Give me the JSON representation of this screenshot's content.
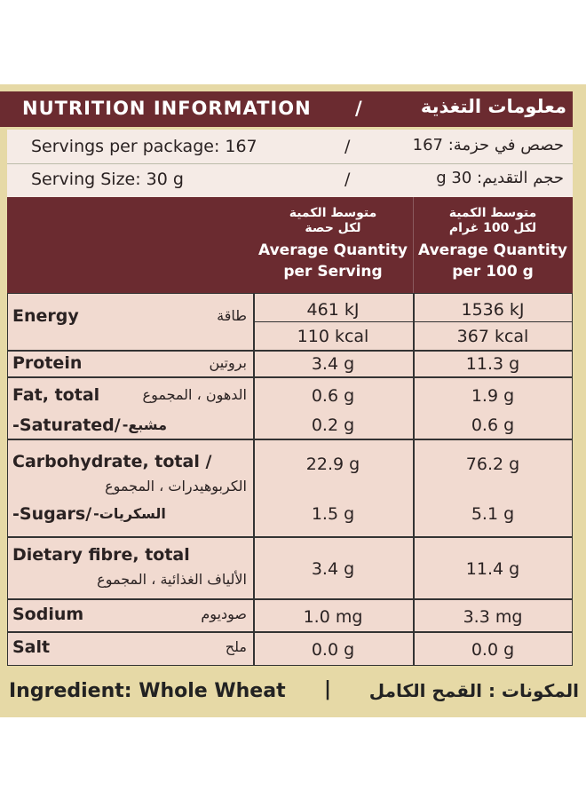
{
  "header": {
    "title_en": "NUTRITION INFORMATION",
    "separator": "/",
    "title_ar": "معلومات التغذية"
  },
  "servings": [
    {
      "label_en": "Servings per package: 167",
      "separator": "/",
      "label_ar": "حصص في حزمة: 167"
    },
    {
      "label_en": "Serving Size: 30 g",
      "separator": "/",
      "label_ar": "حجم التقديم: 30 g"
    }
  ],
  "columns": [
    {
      "ar": [
        "متوسط الكمية",
        "لكل حصة"
      ],
      "en": [
        "Average Quantity",
        "per Serving"
      ]
    },
    {
      "ar": [
        "متوسط الكمية",
        "لكل 100 غرام"
      ],
      "en": [
        "Average Quantity",
        "per 100 g"
      ]
    }
  ],
  "rows": [
    {
      "label_en": "Energy",
      "label_ar": "طاقة",
      "serving": [
        "461 kJ",
        "110 kcal"
      ],
      "per100g": [
        "1536 kJ",
        "367 kcal"
      ]
    },
    {
      "label_en": "Protein",
      "label_ar": "بروتين",
      "serving": [
        "3.4 g"
      ],
      "per100g": [
        "11.3 g"
      ]
    },
    {
      "label_en": "Fat, total",
      "label_ar": "الدهون ، المجموع",
      "serving": [
        "0.6 g"
      ],
      "per100g": [
        "1.9 g"
      ]
    },
    {
      "label_en": "-Saturated/",
      "label_ar": "مشبع-",
      "serving": [
        "0.2 g"
      ],
      "per100g": [
        "0.6 g"
      ]
    },
    {
      "label_en": "Carbohydrate, total /",
      "label_ar": "الكربوهيدرات ، المجموع",
      "serving": [
        "22.9 g"
      ],
      "per100g": [
        "76.2 g"
      ]
    },
    {
      "label_en": "-Sugars/",
      "label_ar": "السكريات-",
      "serving": [
        "1.5 g"
      ],
      "per100g": [
        "5.1 g"
      ]
    },
    {
      "label_en": "Dietary fibre, total",
      "label_ar": "الألياف الغذائية ، المجموع",
      "serving": [
        "3.4 g"
      ],
      "per100g": [
        "11.4 g"
      ]
    },
    {
      "label_en": "Sodium",
      "label_ar": "صوديوم",
      "serving": [
        "1.0 mg"
      ],
      "per100g": [
        "3.3 mg"
      ]
    },
    {
      "label_en": "Salt",
      "label_ar": "ملح",
      "serving": [
        "0.0 g"
      ],
      "per100g": [
        "0.0 g"
      ]
    }
  ],
  "ingredients": {
    "label_en": "Ingredient: Whole Wheat",
    "separator": "|",
    "label_ar": "المكونات : القمح الكامل"
  }
}
